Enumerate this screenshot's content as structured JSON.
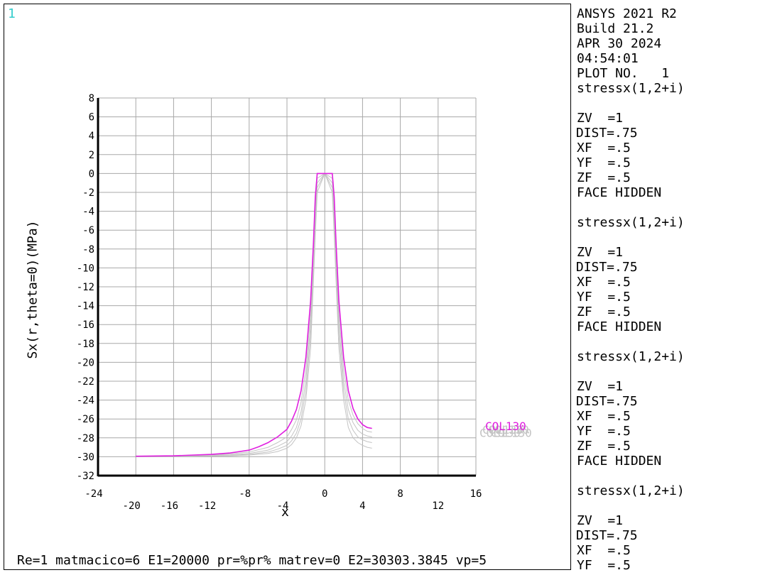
{
  "window_number": "1",
  "window_number_color": "#33cccc",
  "info_panel": [
    {
      "text": "ANSYS 2021 R2"
    },
    {
      "text": "Build 21.2"
    },
    {
      "text": "APR 30 2024"
    },
    {
      "text": "04:54:01"
    },
    {
      "text": "PLOT NO.   1"
    },
    {
      "text": "stressx(1,2+i)"
    },
    {
      "text": ""
    },
    {
      "text": "ZV  =1"
    },
    {
      "text": "*DIST=.75",
      "shift": true
    },
    {
      "text": "XF  =.5"
    },
    {
      "text": "YF  =.5"
    },
    {
      "text": "ZF  =.5"
    },
    {
      "text": "FACE HIDDEN"
    },
    {
      "text": ""
    },
    {
      "text": "stressx(1,2+i)"
    },
    {
      "text": ""
    },
    {
      "text": "ZV  =1"
    },
    {
      "text": "*DIST=.75",
      "shift": true
    },
    {
      "text": "XF  =.5"
    },
    {
      "text": "YF  =.5"
    },
    {
      "text": "ZF  =.5"
    },
    {
      "text": "FACE HIDDEN"
    },
    {
      "text": ""
    },
    {
      "text": "stressx(1,2+i)"
    },
    {
      "text": ""
    },
    {
      "text": "ZV  =1"
    },
    {
      "text": "*DIST=.75",
      "shift": true
    },
    {
      "text": "XF  =.5"
    },
    {
      "text": "YF  =.5"
    },
    {
      "text": "ZF  =.5"
    },
    {
      "text": "FACE HIDDEN"
    },
    {
      "text": ""
    },
    {
      "text": "stressx(1,2+i)"
    },
    {
      "text": ""
    },
    {
      "text": "ZV  =1"
    },
    {
      "text": "*DIST=.75",
      "shift": true
    },
    {
      "text": "XF  =.5"
    },
    {
      "text": "YF  =.5"
    }
  ],
  "footer": "Re=1 matmacico=6 E1=20000 pr=%pr% matrev=0 E2=30303.3845 vp=5",
  "chart_data": {
    "type": "line",
    "title": "",
    "xlabel": "x",
    "ylabel": "Sx(r,theta=0)(MPa)",
    "xlim": [
      -24,
      16
    ],
    "ylim": [
      -32,
      8
    ],
    "grid": true,
    "x_ticks_upper": [
      -24,
      -8,
      0,
      8,
      16
    ],
    "x_ticks_lower": [
      -20,
      -16,
      -12,
      -4,
      4,
      12
    ],
    "y_ticks": [
      8,
      6,
      4,
      2,
      0,
      -2,
      -4,
      -6,
      -8,
      -10,
      -12,
      -14,
      -16,
      -18,
      -20,
      -22,
      -24,
      -26,
      -28,
      -30,
      -32
    ],
    "legend_label": "COL130",
    "highlight_color": "#e020e0",
    "background_series_color": "#c4c4c4",
    "grid_color": "#a8a8a8",
    "series": [
      {
        "highlight": true,
        "x": [
          -20,
          -16,
          -12,
          -10,
          -8,
          -7,
          -6,
          -5,
          -4,
          -3.5,
          -3,
          -2.5,
          -2,
          -1.5,
          -1.2,
          -1,
          -0.8,
          0,
          0.8,
          1,
          1.2,
          1.5,
          2,
          2.5,
          3,
          3.5,
          4,
          4.5,
          5
        ],
        "y": [
          -29.95,
          -29.9,
          -29.75,
          -29.6,
          -29.3,
          -28.95,
          -28.5,
          -27.9,
          -27.1,
          -26.2,
          -25.0,
          -23.0,
          -19.5,
          -13.5,
          -7.5,
          -2.5,
          0,
          0,
          0,
          -2.5,
          -7.5,
          -13.5,
          -19.5,
          -23.0,
          -24.9,
          -26.0,
          -26.6,
          -26.9,
          -27.0
        ]
      },
      {
        "x": [
          -20,
          -16,
          -12,
          -10,
          -8,
          -6,
          -5,
          -4,
          -3.5,
          -3,
          -2.5,
          -2,
          -1.5,
          -1.2,
          -1,
          -0.8,
          0,
          0.8,
          1,
          1.2,
          1.5,
          2,
          2.5,
          3,
          3.5,
          4,
          4.5,
          5
        ],
        "y": [
          -29.95,
          -29.9,
          -29.8,
          -29.7,
          -29.5,
          -29.0,
          -28.5,
          -27.9,
          -27.1,
          -26.1,
          -24.2,
          -20.8,
          -14.8,
          -8.5,
          -3.5,
          -0.5,
          0,
          -0.5,
          -3.5,
          -8.5,
          -14.8,
          -20.8,
          -24.0,
          -25.6,
          -26.5,
          -27.0,
          -27.3,
          -27.4
        ]
      },
      {
        "x": [
          -20,
          -16,
          -12,
          -10,
          -8,
          -6,
          -5,
          -4,
          -3.5,
          -3,
          -2.5,
          -2,
          -1.5,
          -1.2,
          -1,
          -0.8,
          0,
          0.8,
          1,
          1.2,
          1.5,
          2,
          2.5,
          3,
          3.5,
          4,
          4.5,
          5
        ],
        "y": [
          -29.95,
          -29.92,
          -29.85,
          -29.8,
          -29.65,
          -29.3,
          -28.9,
          -28.4,
          -27.8,
          -26.9,
          -25.2,
          -22.0,
          -16.0,
          -9.5,
          -4.5,
          -1.0,
          0,
          -1.0,
          -4.5,
          -9.5,
          -16.0,
          -22.0,
          -25.0,
          -26.4,
          -27.2,
          -27.6,
          -27.8,
          -27.9
        ]
      },
      {
        "x": [
          -20,
          -16,
          -12,
          -10,
          -8,
          -6,
          -5,
          -4,
          -3.5,
          -3,
          -2.5,
          -2,
          -1.5,
          -1.2,
          -1,
          -0.8,
          0,
          0.8,
          1,
          1.2,
          1.5,
          2,
          2.5,
          3,
          3.5,
          4,
          4.5,
          5
        ],
        "y": [
          -29.97,
          -29.95,
          -29.9,
          -29.85,
          -29.75,
          -29.5,
          -29.2,
          -28.8,
          -28.3,
          -27.5,
          -26.0,
          -23.0,
          -17.2,
          -10.5,
          -5.5,
          -1.5,
          0,
          -1.5,
          -5.5,
          -10.5,
          -17.2,
          -23.0,
          -26.0,
          -27.2,
          -27.9,
          -28.2,
          -28.4,
          -28.5
        ]
      },
      {
        "x": [
          -20,
          -16,
          -12,
          -10,
          -8,
          -6,
          -5,
          -4,
          -3.5,
          -3,
          -2.5,
          -2,
          -1.5,
          -1.2,
          -1,
          -0.8,
          0,
          0.8,
          1,
          1.2,
          1.5,
          2,
          2.5,
          3,
          3.5,
          4,
          4.5,
          5
        ],
        "y": [
          -29.98,
          -29.96,
          -29.93,
          -29.9,
          -29.82,
          -29.65,
          -29.45,
          -29.1,
          -28.7,
          -28.0,
          -26.7,
          -24.0,
          -18.5,
          -11.5,
          -6.5,
          -2.0,
          0,
          -2.0,
          -6.5,
          -11.5,
          -18.5,
          -24.0,
          -26.9,
          -28.0,
          -28.5,
          -28.8,
          -29.0,
          -29.1
        ]
      }
    ],
    "legend_markers": [
      {
        "color": "#c4c4c4",
        "offset": -8
      },
      {
        "color": "#c4c4c4",
        "offset": -4
      },
      {
        "color": "#c4c4c4",
        "offset": 4
      },
      {
        "color": "#c4c4c4",
        "offset": 8
      }
    ]
  }
}
